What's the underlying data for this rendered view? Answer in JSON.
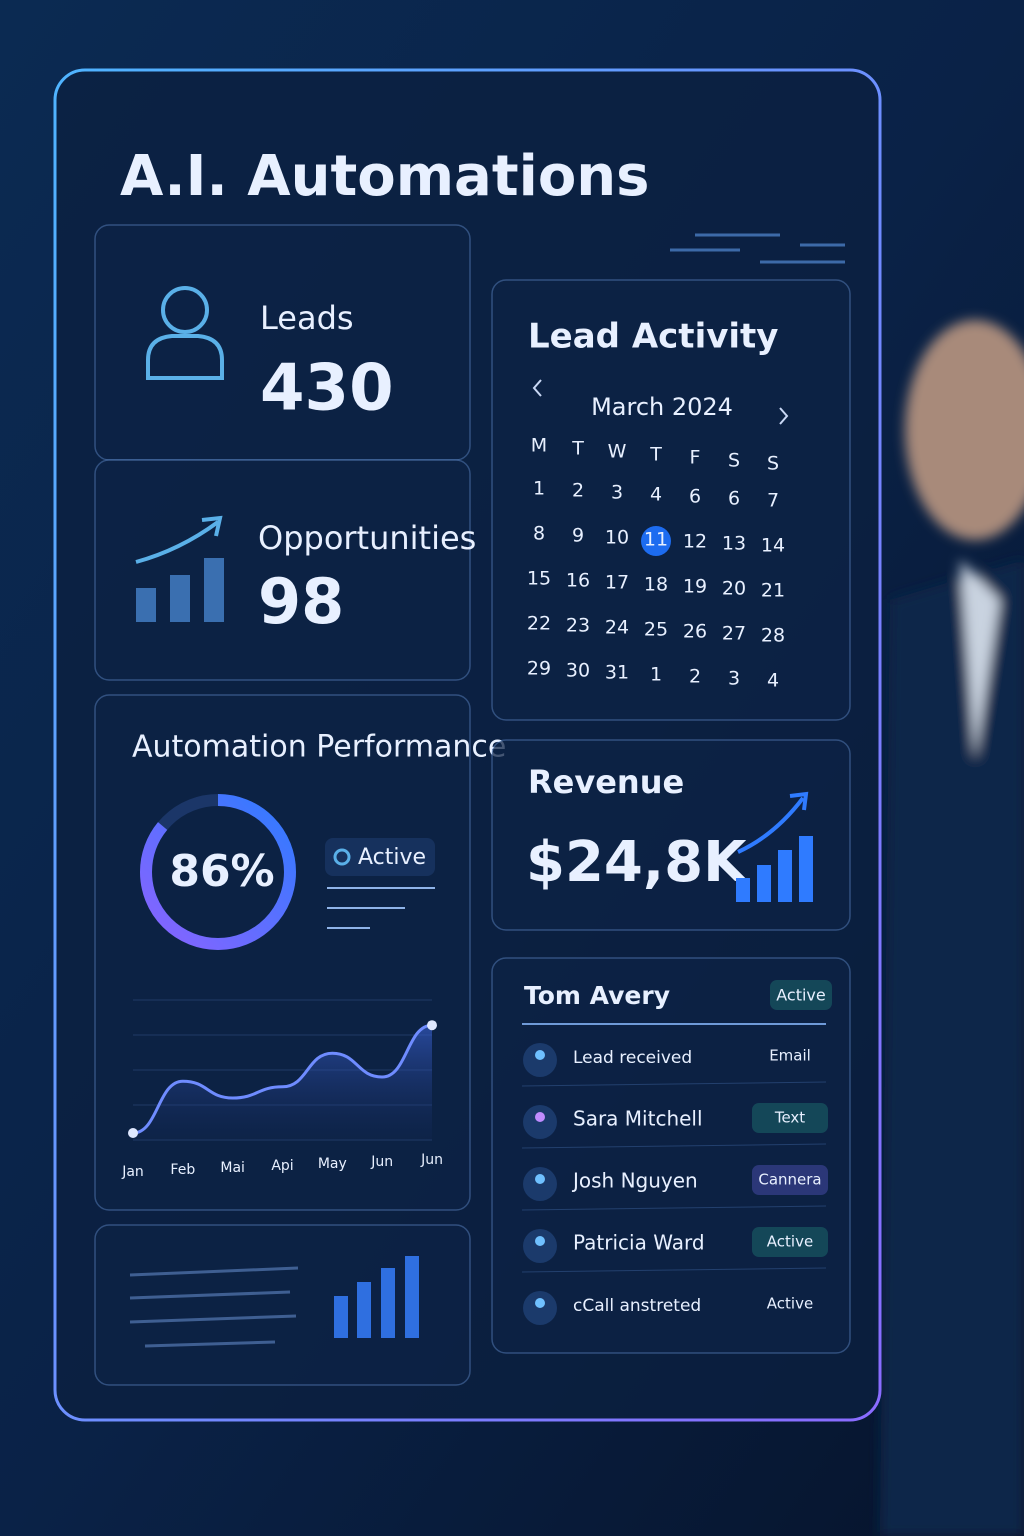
{
  "title": "A.I. Automations",
  "leads": {
    "label": "Leads",
    "value": 430
  },
  "opportunities": {
    "label": "Opportunities",
    "value": 98
  },
  "lead_activity": {
    "title": "Lead Activity",
    "month": "March 2024",
    "weekdays": [
      "M",
      "T",
      "W",
      "T",
      "F",
      "S",
      "S"
    ],
    "days": [
      [
        1,
        2,
        3,
        4,
        6,
        6,
        7
      ],
      [
        8,
        9,
        10,
        11,
        12,
        13,
        14
      ],
      [
        15,
        16,
        17,
        18,
        19,
        20,
        21
      ],
      [
        22,
        23,
        24,
        25,
        26,
        27,
        28
      ],
      [
        29,
        30,
        31,
        1,
        2,
        3,
        4
      ]
    ]
  },
  "automation_performance": {
    "title": "Automation Performance",
    "percent": {
      "value": 86,
      "label": "86%"
    },
    "status": "Active",
    "chart": {
      "type": "line",
      "x": [
        "Jan",
        "Feb",
        "Mai",
        "Api",
        "May",
        "Jun",
        "Jun"
      ],
      "values": [
        5,
        42,
        30,
        38,
        62,
        45,
        82
      ],
      "ylim": [
        0,
        100
      ]
    }
  },
  "revenue": {
    "title": "Revenue",
    "value": "$24,8K"
  },
  "contacts": {
    "name": "Tom Avery",
    "status": "Active",
    "rows": [
      {
        "label": "Lead received",
        "tag": "Email"
      },
      {
        "label": "Sara Mitchell",
        "tag": "Text"
      },
      {
        "label": "Josh Nguyen",
        "tag": "Cannera"
      },
      {
        "label": "Patricia Ward",
        "tag": "Active"
      },
      {
        "label": "cCall anstreted",
        "tag": "Active"
      }
    ]
  }
}
